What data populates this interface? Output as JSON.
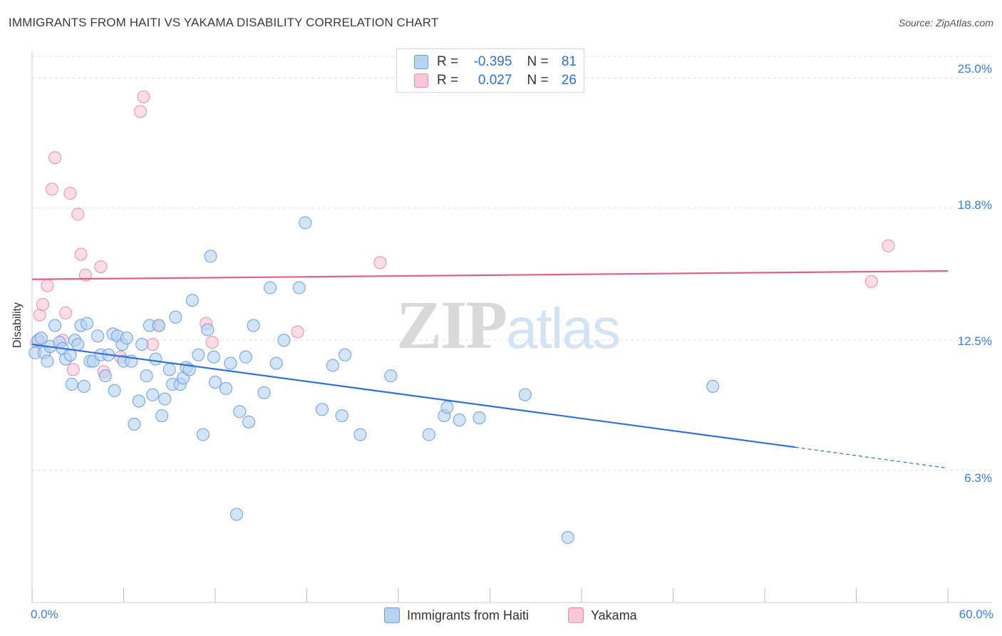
{
  "header": {
    "title": "IMMIGRANTS FROM HAITI VS YAKAMA DISABILITY CORRELATION CHART",
    "source": "Source: ZipAtlas.com"
  },
  "watermark": {
    "zip": "ZIP",
    "atlas": "atlas"
  },
  "legend": {
    "rows": [
      {
        "r_label": "R =",
        "r_value": "-0.395",
        "n_label": "N =",
        "n_value": "81"
      },
      {
        "r_label": "R =",
        "r_value": "0.027",
        "n_label": "N =",
        "n_value": "26"
      }
    ]
  },
  "colors": {
    "blue_fill": "#b8d2f2",
    "blue_stroke": "#6a9fe0",
    "blue_line": "#2f72d6",
    "pink_fill": "#f8c6d6",
    "pink_stroke": "#e890ac",
    "pink_line": "#e0608a",
    "grid": "#dddddd",
    "axis_text": "#3b7dd8"
  },
  "chart_data": {
    "type": "scatter",
    "title": "IMMIGRANTS FROM HAITI VS YAKAMA DISABILITY CORRELATION CHART",
    "xlabel": "",
    "ylabel": "Disability",
    "xlim": [
      0,
      60
    ],
    "ylim": [
      0,
      26.3
    ],
    "x_tick_labels": [
      "0.0%",
      "60.0%"
    ],
    "y_ticks": [
      6.3,
      12.5,
      18.8,
      25.0
    ],
    "y_tick_labels": [
      "6.3%",
      "12.5%",
      "18.8%",
      "25.0%"
    ],
    "grid": true,
    "legend_position": "bottom",
    "series": [
      {
        "name": "Immigrants from Haiti",
        "color": "blue",
        "trend": {
          "x": [
            0,
            50
          ],
          "y": [
            12.3,
            7.4
          ],
          "dashed_to": [
            60,
            6.4
          ]
        },
        "points": [
          [
            0.2,
            11.9
          ],
          [
            0.4,
            12.5
          ],
          [
            0.6,
            12.6
          ],
          [
            0.8,
            11.9
          ],
          [
            1.0,
            11.5
          ],
          [
            1.2,
            12.2
          ],
          [
            1.5,
            13.2
          ],
          [
            1.8,
            12.4
          ],
          [
            2.0,
            12.1
          ],
          [
            2.2,
            11.6
          ],
          [
            2.5,
            11.8
          ],
          [
            2.6,
            10.4
          ],
          [
            2.8,
            12.5
          ],
          [
            3.0,
            12.3
          ],
          [
            3.2,
            13.2
          ],
          [
            3.4,
            10.3
          ],
          [
            3.6,
            13.3
          ],
          [
            3.8,
            11.5
          ],
          [
            4.0,
            11.5
          ],
          [
            4.3,
            12.7
          ],
          [
            4.5,
            11.8
          ],
          [
            4.8,
            10.8
          ],
          [
            5.0,
            11.8
          ],
          [
            5.3,
            12.8
          ],
          [
            5.4,
            10.1
          ],
          [
            5.6,
            12.7
          ],
          [
            5.9,
            12.3
          ],
          [
            6.0,
            11.5
          ],
          [
            6.2,
            12.6
          ],
          [
            6.5,
            11.5
          ],
          [
            6.7,
            8.5
          ],
          [
            7.0,
            9.6
          ],
          [
            7.2,
            12.3
          ],
          [
            7.5,
            10.8
          ],
          [
            7.7,
            13.2
          ],
          [
            7.9,
            9.9
          ],
          [
            8.1,
            11.6
          ],
          [
            8.3,
            13.2
          ],
          [
            8.5,
            8.9
          ],
          [
            8.7,
            9.7
          ],
          [
            9.0,
            11.1
          ],
          [
            9.2,
            10.4
          ],
          [
            9.4,
            13.6
          ],
          [
            9.7,
            10.4
          ],
          [
            9.9,
            10.7
          ],
          [
            10.1,
            11.2
          ],
          [
            10.3,
            11.1
          ],
          [
            10.5,
            14.4
          ],
          [
            10.9,
            11.8
          ],
          [
            11.2,
            8.0
          ],
          [
            11.5,
            13.0
          ],
          [
            11.7,
            16.5
          ],
          [
            11.9,
            11.7
          ],
          [
            12.0,
            10.5
          ],
          [
            12.7,
            10.2
          ],
          [
            13.0,
            11.4
          ],
          [
            13.4,
            4.2
          ],
          [
            13.6,
            9.1
          ],
          [
            14.0,
            11.7
          ],
          [
            14.2,
            8.6
          ],
          [
            14.5,
            13.2
          ],
          [
            15.2,
            10.0
          ],
          [
            15.6,
            15.0
          ],
          [
            16.0,
            11.4
          ],
          [
            16.5,
            12.5
          ],
          [
            17.5,
            15.0
          ],
          [
            17.9,
            18.1
          ],
          [
            19.0,
            9.2
          ],
          [
            19.7,
            11.3
          ],
          [
            20.3,
            8.9
          ],
          [
            20.5,
            11.8
          ],
          [
            21.5,
            8.0
          ],
          [
            23.5,
            10.8
          ],
          [
            26.0,
            8.0
          ],
          [
            27.0,
            8.9
          ],
          [
            27.2,
            9.3
          ],
          [
            28.0,
            8.7
          ],
          [
            29.3,
            8.8
          ],
          [
            32.3,
            9.9
          ],
          [
            35.1,
            3.1
          ],
          [
            44.6,
            10.3
          ]
        ]
      },
      {
        "name": "Yakama",
        "color": "pink",
        "trend": {
          "x": [
            0,
            60
          ],
          "y": [
            15.4,
            15.8
          ]
        },
        "points": [
          [
            0.3,
            12.4
          ],
          [
            0.5,
            13.7
          ],
          [
            0.7,
            14.2
          ],
          [
            1.0,
            15.1
          ],
          [
            1.3,
            19.7
          ],
          [
            1.5,
            21.2
          ],
          [
            2.0,
            12.5
          ],
          [
            2.2,
            13.8
          ],
          [
            2.5,
            19.5
          ],
          [
            2.7,
            11.1
          ],
          [
            3.0,
            18.5
          ],
          [
            3.2,
            16.6
          ],
          [
            3.5,
            15.6
          ],
          [
            4.5,
            16.0
          ],
          [
            4.7,
            11.0
          ],
          [
            5.8,
            11.7
          ],
          [
            7.1,
            23.4
          ],
          [
            7.3,
            24.1
          ],
          [
            7.9,
            12.3
          ],
          [
            8.3,
            13.2
          ],
          [
            11.4,
            13.3
          ],
          [
            11.8,
            12.4
          ],
          [
            17.4,
            12.9
          ],
          [
            22.8,
            16.2
          ],
          [
            55.0,
            15.3
          ],
          [
            56.1,
            17.0
          ]
        ]
      }
    ]
  },
  "axis": {
    "ylabel": "Disability",
    "y_ticks": [
      "25.0%",
      "18.8%",
      "12.5%",
      "6.3%"
    ],
    "x_left": "0.0%",
    "x_right": "60.0%"
  },
  "bottom_legend": {
    "series1": "Immigrants from Haiti",
    "series2": "Yakama"
  }
}
